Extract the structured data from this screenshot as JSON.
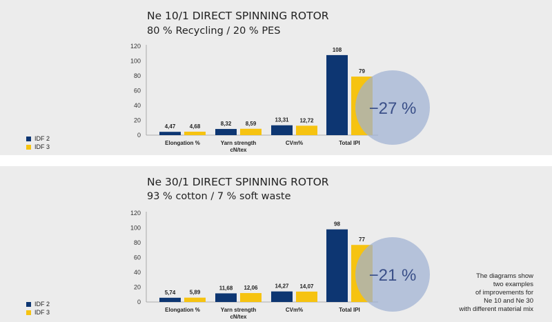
{
  "colors": {
    "idf2": "#0d3672",
    "idf3": "#f6c311",
    "circle": "#9fb2d3",
    "axis": "#9a9a9a"
  },
  "legend": [
    "IDF 2",
    "IDF 3"
  ],
  "panels": [
    {
      "title": "Ne 10/1 DIRECT SPINNING ROTOR",
      "subtitle": "80 % Recycling / 20 % PES",
      "reduction": "−27 %"
    },
    {
      "title": "Ne 30/1 DIRECT SPINNING ROTOR",
      "subtitle": "93 % cotton / 7 % soft waste",
      "reduction": "−21 %"
    }
  ],
  "note": [
    "The diagrams show",
    "two examples",
    "of improvements for",
    "Ne 10 and Ne 30",
    "with different material mix"
  ],
  "chart_data": [
    {
      "type": "bar",
      "title": "Ne 10/1 DIRECT SPINNING ROTOR",
      "categories": [
        [
          "Elongation %"
        ],
        [
          "Yarn strength",
          "cN/tex"
        ],
        [
          "CVm%"
        ],
        [
          "Total IPI"
        ]
      ],
      "series": [
        {
          "name": "IDF 2",
          "values": [
            4.47,
            8.32,
            13.31,
            108
          ],
          "labels": [
            "4,47",
            "8,32",
            "13,31",
            "108"
          ]
        },
        {
          "name": "IDF 3",
          "values": [
            4.68,
            8.59,
            12.72,
            79
          ],
          "labels": [
            "4,68",
            "8,59",
            "12,72",
            "79"
          ]
        }
      ],
      "ylim": [
        0,
        120
      ],
      "yticks": [
        0,
        20,
        40,
        60,
        80,
        100,
        120
      ],
      "annotation": "−27 %",
      "legend_position": "bottom-left",
      "grid": false
    },
    {
      "type": "bar",
      "title": "Ne 30/1 DIRECT SPINNING ROTOR",
      "categories": [
        [
          "Elongation %"
        ],
        [
          "Yarn strength",
          "cN/tex"
        ],
        [
          "CVm%"
        ],
        [
          "Total IPI"
        ]
      ],
      "series": [
        {
          "name": "IDF 2",
          "values": [
            5.74,
            11.68,
            14.27,
            98
          ],
          "labels": [
            "5,74",
            "11,68",
            "14,27",
            "98"
          ]
        },
        {
          "name": "IDF 3",
          "values": [
            5.89,
            12.06,
            14.07,
            77
          ],
          "labels": [
            "5,89",
            "12,06",
            "14,07",
            "77"
          ]
        }
      ],
      "ylim": [
        0,
        120
      ],
      "yticks": [
        0,
        20,
        40,
        60,
        80,
        100,
        120
      ],
      "annotation": "−21 %",
      "legend_position": "bottom-left",
      "grid": false
    }
  ]
}
